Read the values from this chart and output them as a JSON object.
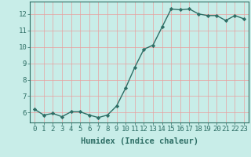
{
  "x": [
    0,
    1,
    2,
    3,
    4,
    5,
    6,
    7,
    8,
    9,
    10,
    11,
    12,
    13,
    14,
    15,
    16,
    17,
    18,
    19,
    20,
    21,
    22,
    23
  ],
  "y": [
    6.2,
    5.85,
    5.95,
    5.75,
    6.05,
    6.05,
    5.85,
    5.7,
    5.85,
    6.4,
    7.5,
    8.75,
    9.85,
    10.1,
    11.2,
    12.3,
    12.25,
    12.3,
    12.0,
    11.9,
    11.9,
    11.6,
    11.9,
    11.7
  ],
  "line_color": "#2e6e65",
  "marker": "D",
  "marker_size": 2.2,
  "bg_color": "#c8ede8",
  "grid_color_x": "#e8a0a0",
  "grid_color_y": "#e8a0a0",
  "axis_color": "#2e6e65",
  "xlabel": "Humidex (Indice chaleur)",
  "xlim": [
    -0.5,
    23.5
  ],
  "ylim": [
    5.4,
    12.75
  ],
  "yticks": [
    6,
    7,
    8,
    9,
    10,
    11,
    12
  ],
  "xticks": [
    0,
    1,
    2,
    3,
    4,
    5,
    6,
    7,
    8,
    9,
    10,
    11,
    12,
    13,
    14,
    15,
    16,
    17,
    18,
    19,
    20,
    21,
    22,
    23
  ],
  "tick_fontsize": 6.5,
  "xlabel_fontsize": 7.5,
  "line_width": 1.0
}
